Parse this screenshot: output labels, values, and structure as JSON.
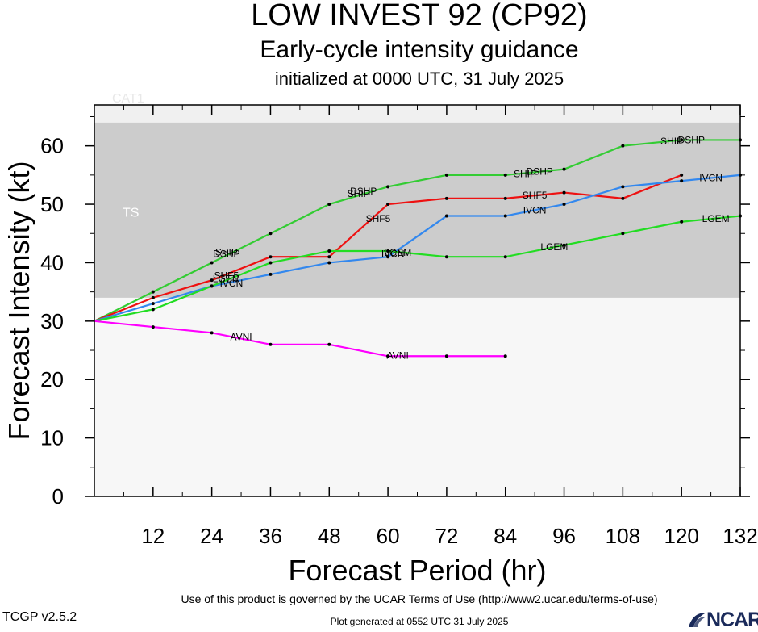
{
  "header": {
    "title": "LOW INVEST 92 (CP92)",
    "subtitle": "Early-cycle intensity guidance",
    "init": "initialized at 0000 UTC, 31 July 2025"
  },
  "footer": {
    "terms": "Use of this product is governed by the UCAR Terms of Use (http://www2.ucar.edu/terms-of-use)",
    "version": "TCGP v2.5.2",
    "generated": "Plot generated at 0552 UTC   31 July 2025",
    "logo": "NCAR"
  },
  "colors": {
    "band_ts": "#cccccc",
    "band_cat1": "#f0f0f0",
    "plot_bg": "#f7f7f7",
    "DSHP": "#33cc33",
    "SHF5": "#ee1111",
    "IVCN": "#3388ee",
    "LGEM": "#22dd22",
    "AVNI": "#ff00ff"
  },
  "chart_data": {
    "type": "line",
    "xlabel": "Forecast Period (hr)",
    "ylabel": "Forecast Intensity (kt)",
    "xlim": [
      0,
      132
    ],
    "ylim": [
      0,
      67
    ],
    "xticks": [
      12,
      24,
      36,
      48,
      60,
      72,
      84,
      96,
      108,
      120,
      132
    ],
    "yticks": [
      0,
      10,
      20,
      30,
      40,
      50,
      60
    ],
    "bands": [
      {
        "name": "TS",
        "from": 34,
        "to": 64
      },
      {
        "name": "CAT1",
        "from": 64,
        "to": 67
      }
    ],
    "series": [
      {
        "name": "DSHP",
        "colorKey": "DSHP",
        "x": [
          0,
          12,
          24,
          36,
          48,
          60,
          72,
          84,
          96,
          108,
          120,
          132
        ],
        "y": [
          30,
          35,
          40,
          45,
          50,
          53,
          55,
          55,
          56,
          60,
          61,
          61
        ]
      },
      {
        "name": "SHF5",
        "colorKey": "SHF5",
        "x": [
          0,
          12,
          24,
          36,
          48,
          60,
          72,
          84,
          96,
          108,
          120
        ],
        "y": [
          30,
          34,
          37,
          41,
          41,
          50,
          51,
          51,
          52,
          51,
          55
        ]
      },
      {
        "name": "IVCN",
        "colorKey": "IVCN",
        "x": [
          0,
          12,
          24,
          36,
          48,
          60,
          72,
          84,
          96,
          108,
          120,
          132
        ],
        "y": [
          30,
          33,
          36,
          38,
          40,
          41,
          48,
          48,
          50,
          53,
          54,
          55
        ]
      },
      {
        "name": "LGEM",
        "colorKey": "LGEM",
        "x": [
          0,
          12,
          24,
          36,
          48,
          60,
          72,
          84,
          96,
          108,
          120,
          132
        ],
        "y": [
          30,
          32,
          36,
          40,
          42,
          42,
          41,
          41,
          43,
          45,
          47,
          48
        ]
      },
      {
        "name": "AVNI",
        "colorKey": "AVNI",
        "x": [
          0,
          12,
          24,
          36,
          48,
          60,
          72,
          84
        ],
        "y": [
          30,
          29,
          28,
          26,
          26,
          24,
          24,
          24
        ]
      }
    ],
    "line_labels": [
      {
        "text": "DSHP",
        "x": 27,
        "y": 41.5
      },
      {
        "text": "SHIP",
        "x": 27,
        "y": 41.8
      },
      {
        "text": "SHF5",
        "x": 27,
        "y": 37.8
      },
      {
        "text": "LGEM",
        "x": 27,
        "y": 37.2
      },
      {
        "text": "IVCN",
        "x": 28,
        "y": 36.5
      },
      {
        "text": "AVNI",
        "x": 30,
        "y": 27.3
      },
      {
        "text": "DSHP",
        "x": 55,
        "y": 52.2
      },
      {
        "text": "SHIP",
        "x": 54,
        "y": 51.8
      },
      {
        "text": "SHF5",
        "x": 58,
        "y": 47.5
      },
      {
        "text": "IVCN",
        "x": 61,
        "y": 41.5
      },
      {
        "text": "LGEM",
        "x": 62,
        "y": 41.7
      },
      {
        "text": "AVNI",
        "x": 62,
        "y": 24.1
      },
      {
        "text": "SHIP",
        "x": 88,
        "y": 55.2
      },
      {
        "text": "DSHP",
        "x": 91,
        "y": 55.6
      },
      {
        "text": "SHF5",
        "x": 90,
        "y": 51.5
      },
      {
        "text": "IVCN",
        "x": 90,
        "y": 49
      },
      {
        "text": "LGEM",
        "x": 94,
        "y": 42.7
      },
      {
        "text": "SHIP",
        "x": 118,
        "y": 60.8
      },
      {
        "text": "DSHP",
        "x": 122,
        "y": 61
      },
      {
        "text": "IVCN",
        "x": 126,
        "y": 54.5
      },
      {
        "text": "LGEM",
        "x": 127,
        "y": 47.5
      }
    ]
  }
}
